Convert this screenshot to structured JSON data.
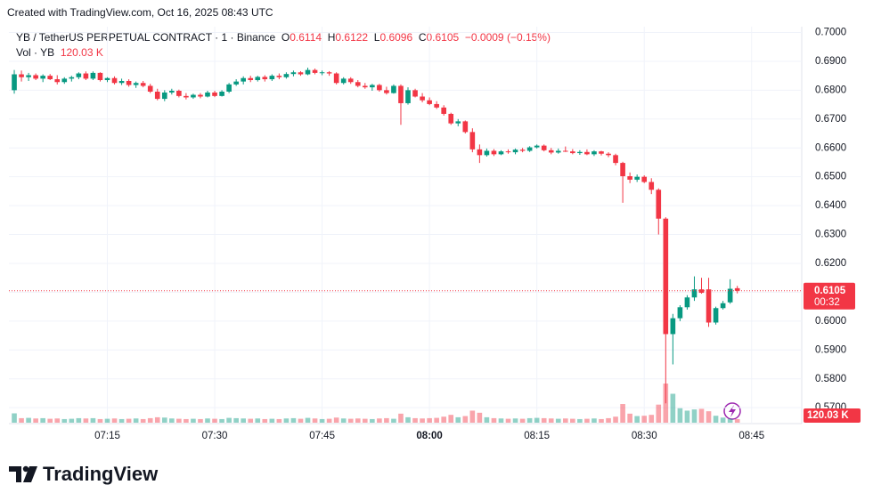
{
  "header": "Created with TradingView.com, Oct 16, 2025 08:43 UTC",
  "brand": "TradingView",
  "chart_data": {
    "type": "candlestick",
    "title": "YB / TetherUS PERPETUAL CONTRACT · 1 · Binance",
    "legend_labels": [
      "O",
      "H",
      "L",
      "C"
    ],
    "change": {
      "value": -0.0009,
      "label": "−0.0009"
    },
    "change_pct": {
      "value": -0.15,
      "label": "(−0.15%)"
    },
    "countdown": "00:32",
    "up_color": "#089981",
    "down_color": "#f23645",
    "ylim": [
      0.5645,
      0.702
    ],
    "yticks": [
      {
        "value": 0.7,
        "label": "0.7000"
      },
      {
        "value": 0.69,
        "label": "0.6900"
      },
      {
        "value": 0.68,
        "label": "0.6800"
      },
      {
        "value": 0.67,
        "label": "0.6700"
      },
      {
        "value": 0.66,
        "label": "0.6600"
      },
      {
        "value": 0.65,
        "label": "0.6500"
      },
      {
        "value": 0.64,
        "label": "0.6400"
      },
      {
        "value": 0.63,
        "label": "0.6300"
      },
      {
        "value": 0.62,
        "label": "0.6200"
      },
      {
        "value": 0.61,
        "label": "0.6100"
      },
      {
        "value": 0.6,
        "label": "0.6000"
      },
      {
        "value": 0.59,
        "label": "0.5900"
      },
      {
        "value": 0.58,
        "label": "0.5800"
      },
      {
        "value": 0.57,
        "label": "0.5700"
      }
    ],
    "xlim": [
      -0.75,
      110
    ],
    "xticks": [
      {
        "value": 13,
        "label": "07:15"
      },
      {
        "value": 28,
        "label": "07:30"
      },
      {
        "value": 43,
        "label": "07:45"
      },
      {
        "value": 58,
        "label": "08:00"
      },
      {
        "value": 73,
        "label": "08:15"
      },
      {
        "value": 88,
        "label": "08:30"
      },
      {
        "value": 103,
        "label": "08:45"
      }
    ],
    "grid": true,
    "ohlc": [
      [
        0.68,
        0.687,
        0.6788,
        0.6855
      ],
      [
        0.6855,
        0.6868,
        0.683,
        0.6845
      ],
      [
        0.6845,
        0.686,
        0.6832,
        0.6852
      ],
      [
        0.6852,
        0.6858,
        0.6835,
        0.684
      ],
      [
        0.684,
        0.6855,
        0.6828,
        0.685
      ],
      [
        0.685,
        0.6856,
        0.6835,
        0.6838
      ],
      [
        0.6838,
        0.6852,
        0.682,
        0.6828
      ],
      [
        0.6828,
        0.6845,
        0.6822,
        0.684
      ],
      [
        0.684,
        0.685,
        0.683,
        0.6845
      ],
      [
        0.6845,
        0.6862,
        0.6838,
        0.6858
      ],
      [
        0.6858,
        0.6865,
        0.6835,
        0.684
      ],
      [
        0.684,
        0.6865,
        0.6835,
        0.686
      ],
      [
        0.686,
        0.6862,
        0.683,
        0.6835
      ],
      [
        0.6835,
        0.6845,
        0.6828,
        0.6842
      ],
      [
        0.6842,
        0.6848,
        0.682,
        0.6825
      ],
      [
        0.6825,
        0.684,
        0.6818,
        0.6832
      ],
      [
        0.6832,
        0.6838,
        0.6812,
        0.6818
      ],
      [
        0.6818,
        0.683,
        0.6808,
        0.6825
      ],
      [
        0.6825,
        0.6832,
        0.681,
        0.6815
      ],
      [
        0.6815,
        0.6822,
        0.679,
        0.6795
      ],
      [
        0.6795,
        0.6805,
        0.6765,
        0.677
      ],
      [
        0.677,
        0.68,
        0.6762,
        0.6792
      ],
      [
        0.6792,
        0.6805,
        0.6785,
        0.6798
      ],
      [
        0.6798,
        0.6802,
        0.6775,
        0.678
      ],
      [
        0.678,
        0.679,
        0.6768,
        0.6775
      ],
      [
        0.6775,
        0.6788,
        0.677,
        0.6784
      ],
      [
        0.6784,
        0.679,
        0.6772,
        0.6778
      ],
      [
        0.6778,
        0.6798,
        0.6775,
        0.6792
      ],
      [
        0.6792,
        0.6798,
        0.6776,
        0.678
      ],
      [
        0.678,
        0.68,
        0.6778,
        0.6795
      ],
      [
        0.6795,
        0.6825,
        0.679,
        0.682
      ],
      [
        0.682,
        0.6838,
        0.6815,
        0.683
      ],
      [
        0.683,
        0.6848,
        0.682,
        0.6842
      ],
      [
        0.6842,
        0.685,
        0.6828,
        0.6835
      ],
      [
        0.6835,
        0.685,
        0.683,
        0.6846
      ],
      [
        0.6846,
        0.6852,
        0.683,
        0.6838
      ],
      [
        0.6838,
        0.6855,
        0.6832,
        0.685
      ],
      [
        0.685,
        0.6858,
        0.6838,
        0.6845
      ],
      [
        0.6845,
        0.6862,
        0.684,
        0.6856
      ],
      [
        0.6856,
        0.6868,
        0.6848,
        0.6862
      ],
      [
        0.6862,
        0.6866,
        0.685,
        0.6855
      ],
      [
        0.6855,
        0.6878,
        0.6852,
        0.687
      ],
      [
        0.687,
        0.6875,
        0.6855,
        0.686
      ],
      [
        0.686,
        0.6868,
        0.6852,
        0.6862
      ],
      [
        0.6862,
        0.6866,
        0.685,
        0.6858
      ],
      [
        0.6858,
        0.6862,
        0.682,
        0.6825
      ],
      [
        0.6825,
        0.6845,
        0.682,
        0.684
      ],
      [
        0.684,
        0.6845,
        0.6822,
        0.6828
      ],
      [
        0.6828,
        0.6835,
        0.681,
        0.6815
      ],
      [
        0.6815,
        0.6825,
        0.6805,
        0.681
      ],
      [
        0.681,
        0.6822,
        0.6798,
        0.6818
      ],
      [
        0.6818,
        0.6822,
        0.6795,
        0.68
      ],
      [
        0.68,
        0.6812,
        0.6785,
        0.679
      ],
      [
        0.679,
        0.682,
        0.6788,
        0.6815
      ],
      [
        0.6815,
        0.682,
        0.668,
        0.6755
      ],
      [
        0.6755,
        0.681,
        0.675,
        0.68
      ],
      [
        0.68,
        0.6805,
        0.6775,
        0.6778
      ],
      [
        0.6778,
        0.679,
        0.6758,
        0.6765
      ],
      [
        0.6765,
        0.6775,
        0.6748,
        0.6752
      ],
      [
        0.6752,
        0.6762,
        0.6735,
        0.674
      ],
      [
        0.674,
        0.6748,
        0.6712,
        0.6718
      ],
      [
        0.6718,
        0.6722,
        0.668,
        0.6685
      ],
      [
        0.6685,
        0.67,
        0.6675,
        0.6692
      ],
      [
        0.6692,
        0.6695,
        0.665,
        0.6655
      ],
      [
        0.6655,
        0.6668,
        0.6585,
        0.6595
      ],
      [
        0.6595,
        0.6612,
        0.6548,
        0.6575
      ],
      [
        0.6575,
        0.6598,
        0.657,
        0.659
      ],
      [
        0.659,
        0.6596,
        0.6572,
        0.6578
      ],
      [
        0.6578,
        0.6592,
        0.6575,
        0.6588
      ],
      [
        0.6588,
        0.6595,
        0.658,
        0.6585
      ],
      [
        0.6585,
        0.6598,
        0.6578,
        0.6594
      ],
      [
        0.6594,
        0.66,
        0.6585,
        0.659
      ],
      [
        0.659,
        0.6606,
        0.6586,
        0.6602
      ],
      [
        0.6602,
        0.6612,
        0.6598,
        0.6608
      ],
      [
        0.6608,
        0.6612,
        0.6588,
        0.6592
      ],
      [
        0.6592,
        0.66,
        0.6578,
        0.6584
      ],
      [
        0.6584,
        0.6598,
        0.658,
        0.659
      ],
      [
        0.659,
        0.6605,
        0.6586,
        0.6588
      ],
      [
        0.6588,
        0.6596,
        0.6578,
        0.6582
      ],
      [
        0.6582,
        0.6592,
        0.6576,
        0.6586
      ],
      [
        0.6586,
        0.6595,
        0.6575,
        0.6578
      ],
      [
        0.6578,
        0.6592,
        0.6572,
        0.6588
      ],
      [
        0.6588,
        0.659,
        0.6574,
        0.658
      ],
      [
        0.658,
        0.6585,
        0.6568,
        0.6575
      ],
      [
        0.6575,
        0.658,
        0.654,
        0.6548
      ],
      [
        0.6548,
        0.6552,
        0.641,
        0.6502
      ],
      [
        0.6502,
        0.6515,
        0.6478,
        0.649
      ],
      [
        0.649,
        0.6508,
        0.6482,
        0.65
      ],
      [
        0.65,
        0.6505,
        0.6478,
        0.6482
      ],
      [
        0.6482,
        0.6495,
        0.644,
        0.6455
      ],
      [
        0.6455,
        0.646,
        0.63,
        0.6355
      ],
      [
        0.6355,
        0.636,
        0.5715,
        0.5955
      ],
      [
        0.5955,
        0.6025,
        0.585,
        0.601
      ],
      [
        0.601,
        0.6055,
        0.6,
        0.6048
      ],
      [
        0.6048,
        0.609,
        0.604,
        0.6082
      ],
      [
        0.6082,
        0.6155,
        0.607,
        0.611
      ],
      [
        0.611,
        0.615,
        0.6095,
        0.6098
      ],
      [
        0.611,
        0.615,
        0.598,
        0.5995
      ],
      [
        0.5995,
        0.605,
        0.5988,
        0.6045
      ],
      [
        0.6045,
        0.607,
        0.604,
        0.6062
      ],
      [
        0.6065,
        0.6145,
        0.606,
        0.6112
      ],
      [
        0.6114,
        0.6122,
        0.6096,
        0.6105
      ]
    ],
    "volume": {
      "name": "Vol · YB",
      "last_label": "120.03 K",
      "values": [
        310000,
        150000,
        160000,
        140000,
        150000,
        130000,
        140000,
        120000,
        130000,
        150000,
        140000,
        150000,
        120000,
        130000,
        140000,
        120000,
        130000,
        140000,
        120000,
        150000,
        180000,
        170000,
        140000,
        130000,
        120000,
        130000,
        120000,
        140000,
        130000,
        120000,
        160000,
        150000,
        140000,
        130000,
        140000,
        120000,
        130000,
        120000,
        140000,
        150000,
        130000,
        160000,
        140000,
        120000,
        130000,
        170000,
        140000,
        130000,
        140000,
        130000,
        120000,
        140000,
        150000,
        130000,
        300000,
        180000,
        150000,
        140000,
        150000,
        160000,
        200000,
        260000,
        180000,
        220000,
        400000,
        330000,
        180000,
        150000,
        140000,
        130000,
        140000,
        130000,
        150000,
        160000,
        150000,
        140000,
        130000,
        140000,
        130000,
        120000,
        130000,
        140000,
        120000,
        150000,
        200000,
        620000,
        300000,
        220000,
        230000,
        260000,
        600000,
        1300000,
        960000,
        480000,
        400000,
        440000,
        460000,
        380000,
        230000,
        170000,
        130000,
        120030
      ]
    }
  }
}
